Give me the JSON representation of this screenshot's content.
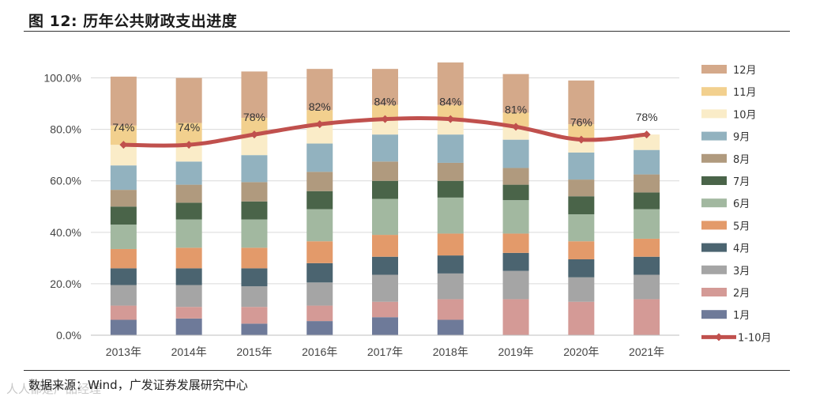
{
  "figure": {
    "title": "图  12:  历年公共财政支出进度",
    "source": "数据来源：Wind，广发证券发展研究中心",
    "watermark": "人人都是产品经理"
  },
  "chart_data": {
    "type": "bar",
    "subtype": "stacked-bar-with-line",
    "title": "历年公共财政支出进度",
    "xlabel": "",
    "ylabel": "",
    "ylim": [
      0,
      110
    ],
    "yticks": [
      0,
      20,
      40,
      60,
      80,
      100
    ],
    "ytick_labels": [
      "0.0%",
      "20.0%",
      "40.0%",
      "60.0%",
      "80.0%",
      "100.0%"
    ],
    "grid": true,
    "legend_position": "right",
    "categories": [
      "2013年",
      "2014年",
      "2015年",
      "2016年",
      "2017年",
      "2018年",
      "2019年",
      "2020年",
      "2021年"
    ],
    "series": [
      {
        "name": "1月",
        "color": "#6e7a99",
        "values": [
          6,
          6.5,
          4.5,
          5.5,
          7,
          6,
          null,
          null,
          null
        ]
      },
      {
        "name": "2月",
        "color": "#d49a96",
        "values": [
          5.5,
          4.5,
          6.5,
          6,
          6,
          8,
          14,
          13,
          14
        ]
      },
      {
        "name": "3月",
        "color": "#a5a5a5",
        "values": [
          8,
          8.5,
          8,
          9,
          10.5,
          10,
          11,
          9.5,
          9.5
        ]
      },
      {
        "name": "4月",
        "color": "#4b6470",
        "values": [
          6.5,
          6.5,
          7,
          7.5,
          7,
          7,
          7,
          7,
          7
        ]
      },
      {
        "name": "5月",
        "color": "#e39a6a",
        "values": [
          7.5,
          8,
          8,
          8.5,
          8.5,
          8.5,
          7.5,
          7,
          7
        ]
      },
      {
        "name": "6月",
        "color": "#a2b8a0",
        "values": [
          9.5,
          11,
          11,
          12.5,
          14,
          14,
          13,
          10.5,
          11.5
        ]
      },
      {
        "name": "7月",
        "color": "#4a6449",
        "values": [
          7,
          6.5,
          7,
          7,
          7,
          6.5,
          6,
          7,
          6.5
        ]
      },
      {
        "name": "8月",
        "color": "#b09a7e",
        "values": [
          6.5,
          7,
          7.5,
          7.5,
          7.5,
          7,
          6.5,
          6.5,
          7
        ]
      },
      {
        "name": "9月",
        "color": "#92b2bf",
        "values": [
          9.5,
          9,
          10.5,
          11,
          10.5,
          11,
          11,
          10.5,
          9.5
        ]
      },
      {
        "name": "10月",
        "color": "#faecc8",
        "values": [
          8,
          6.5,
          8,
          7,
          6,
          6,
          5,
          5.5,
          6
        ]
      },
      {
        "name": "11月",
        "color": "#f2d08e",
        "values": [
          7.5,
          8.5,
          6.5,
          6,
          5.5,
          5.5,
          5.5,
          5.5,
          null
        ]
      },
      {
        "name": "12月",
        "color": "#d4a98a",
        "values": [
          19,
          17.5,
          18,
          16,
          14,
          16.5,
          15,
          17,
          null
        ]
      }
    ],
    "line_series": {
      "name": "1-10月",
      "color": "#c0504d",
      "values": [
        74,
        74,
        78,
        82,
        84,
        84,
        81,
        76,
        78
      ],
      "data_labels": [
        "74%",
        "74%",
        "78%",
        "82%",
        "84%",
        "84%",
        "81%",
        "76%",
        "78%"
      ]
    }
  }
}
